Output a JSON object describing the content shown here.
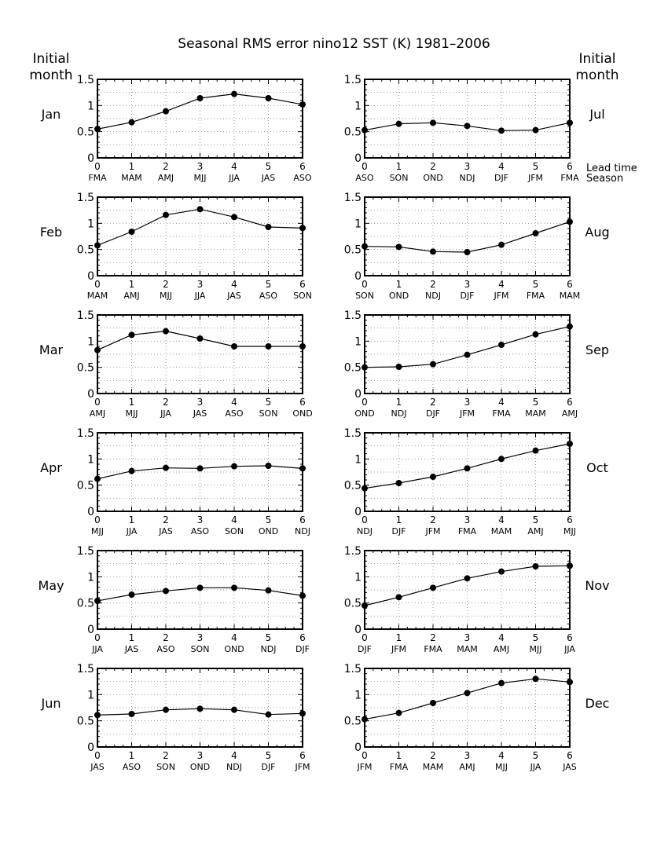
{
  "chart_data": {
    "type": "line",
    "title": "Seasonal RMS error    nino12 SST (K)    1981–2006",
    "left_header": [
      "Initial",
      "month"
    ],
    "right_header": [
      "Initial",
      "month"
    ],
    "side_labels": [
      "Lead time",
      "Season"
    ],
    "xlabel": "",
    "ylabel": "",
    "x_ticks": [
      "0",
      "1",
      "2",
      "3",
      "4",
      "5",
      "6"
    ],
    "y_ticks": [
      "0",
      "0.5",
      "1",
      "1.5"
    ],
    "xlim": [
      0,
      6
    ],
    "ylim": [
      0,
      1.5
    ],
    "grid": true,
    "x": [
      0,
      1,
      2,
      3,
      4,
      5,
      6
    ],
    "panels": [
      {
        "month": "Jan",
        "seasons": [
          "FMA",
          "MAM",
          "AMJ",
          "MJJ",
          "JJA",
          "JAS",
          "ASO"
        ],
        "values": [
          0.55,
          0.68,
          0.89,
          1.14,
          1.22,
          1.14,
          1.02
        ]
      },
      {
        "month": "Jul",
        "seasons": [
          "ASO",
          "SON",
          "OND",
          "NDJ",
          "DJF",
          "JFM",
          "FMA"
        ],
        "values": [
          0.53,
          0.65,
          0.67,
          0.61,
          0.52,
          0.53,
          0.67
        ]
      },
      {
        "month": "Feb",
        "seasons": [
          "MAM",
          "AMJ",
          "MJJ",
          "JJA",
          "JAS",
          "ASO",
          "SON"
        ],
        "values": [
          0.58,
          0.84,
          1.16,
          1.27,
          1.12,
          0.93,
          0.91
        ]
      },
      {
        "month": "Aug",
        "seasons": [
          "SON",
          "OND",
          "NDJ",
          "DJF",
          "JFM",
          "FMA",
          "MAM"
        ],
        "values": [
          0.56,
          0.55,
          0.46,
          0.45,
          0.59,
          0.81,
          1.03
        ]
      },
      {
        "month": "Mar",
        "seasons": [
          "AMJ",
          "MJJ",
          "JJA",
          "JAS",
          "ASO",
          "SON",
          "OND"
        ],
        "values": [
          0.83,
          1.12,
          1.19,
          1.05,
          0.9,
          0.9,
          0.9
        ]
      },
      {
        "month": "Sep",
        "seasons": [
          "OND",
          "NDJ",
          "DJF",
          "JFM",
          "FMA",
          "MAM",
          "AMJ"
        ],
        "values": [
          0.5,
          0.51,
          0.56,
          0.74,
          0.93,
          1.13,
          1.28
        ]
      },
      {
        "month": "Apr",
        "seasons": [
          "MJJ",
          "JJA",
          "JAS",
          "ASO",
          "SON",
          "OND",
          "NDJ"
        ],
        "values": [
          0.62,
          0.77,
          0.83,
          0.82,
          0.86,
          0.87,
          0.82
        ]
      },
      {
        "month": "Oct",
        "seasons": [
          "NDJ",
          "DJF",
          "JFM",
          "FMA",
          "MAM",
          "AMJ",
          "MJJ"
        ],
        "values": [
          0.44,
          0.54,
          0.66,
          0.82,
          1.0,
          1.16,
          1.29
        ]
      },
      {
        "month": "May",
        "seasons": [
          "JJA",
          "JAS",
          "ASO",
          "SON",
          "OND",
          "NDJ",
          "DJF"
        ],
        "values": [
          0.54,
          0.66,
          0.73,
          0.79,
          0.79,
          0.74,
          0.64
        ]
      },
      {
        "month": "Nov",
        "seasons": [
          "DJF",
          "JFM",
          "FMA",
          "MAM",
          "AMJ",
          "MJJ",
          "JJA"
        ],
        "values": [
          0.45,
          0.61,
          0.79,
          0.97,
          1.1,
          1.2,
          1.21
        ]
      },
      {
        "month": "Jun",
        "seasons": [
          "JAS",
          "ASO",
          "SON",
          "OND",
          "NDJ",
          "DJF",
          "JFM"
        ],
        "values": [
          0.61,
          0.63,
          0.71,
          0.73,
          0.71,
          0.62,
          0.64
        ]
      },
      {
        "month": "Dec",
        "seasons": [
          "JFM",
          "FMA",
          "MAM",
          "AMJ",
          "MJJ",
          "JJA",
          "JAS"
        ],
        "values": [
          0.53,
          0.65,
          0.84,
          1.03,
          1.22,
          1.3,
          1.24
        ]
      }
    ]
  }
}
